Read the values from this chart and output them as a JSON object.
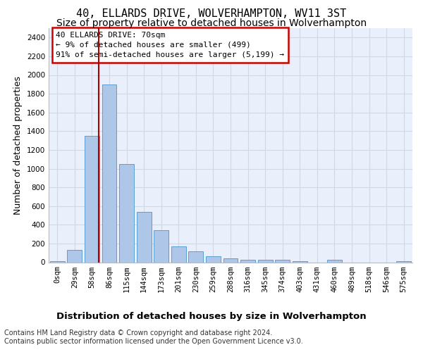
{
  "title": "40, ELLARDS DRIVE, WOLVERHAMPTON, WV11 3ST",
  "subtitle": "Size of property relative to detached houses in Wolverhampton",
  "xlabel": "Distribution of detached houses by size in Wolverhampton",
  "ylabel": "Number of detached properties",
  "footer_line1": "Contains HM Land Registry data © Crown copyright and database right 2024.",
  "footer_line2": "Contains public sector information licensed under the Open Government Licence v3.0.",
  "bin_labels": [
    "0sqm",
    "29sqm",
    "58sqm",
    "86sqm",
    "115sqm",
    "144sqm",
    "173sqm",
    "201sqm",
    "230sqm",
    "259sqm",
    "288sqm",
    "316sqm",
    "345sqm",
    "374sqm",
    "403sqm",
    "431sqm",
    "460sqm",
    "489sqm",
    "518sqm",
    "546sqm",
    "575sqm"
  ],
  "bar_heights": [
    10,
    130,
    1350,
    1900,
    1050,
    540,
    340,
    170,
    115,
    65,
    45,
    30,
    30,
    25,
    15,
    0,
    25,
    0,
    0,
    0,
    15
  ],
  "bar_color": "#aec6e8",
  "bar_edge_color": "#5a9fd4",
  "grid_color": "#d0d8e8",
  "background_color": "#eaf0fb",
  "annotation_line1": "40 ELLARDS DRIVE: 70sqm",
  "annotation_line2": "← 9% of detached houses are smaller (499)",
  "annotation_line3": "91% of semi-detached houses are larger (5,199) →",
  "annotation_box_color": "#ffffff",
  "annotation_border_color": "#cc0000",
  "vline_x": 2.38,
  "vline_color": "#aa0000",
  "ylim": [
    0,
    2500
  ],
  "yticks": [
    0,
    200,
    400,
    600,
    800,
    1000,
    1200,
    1400,
    1600,
    1800,
    2000,
    2200,
    2400
  ],
  "title_fontsize": 11,
  "subtitle_fontsize": 10,
  "xlabel_fontsize": 9.5,
  "ylabel_fontsize": 9,
  "tick_fontsize": 7.5,
  "annotation_fontsize": 8,
  "footer_fontsize": 7
}
